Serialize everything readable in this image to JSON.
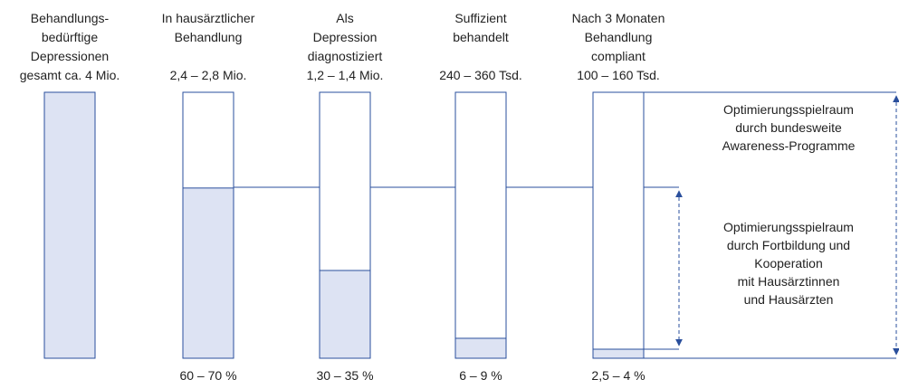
{
  "columns": [
    {
      "label_lines": [
        "Behandlungs-",
        "bedürftige",
        "Depressionen"
      ],
      "amount": "gesamt ca. 4 Mio.",
      "fill": 100
    },
    {
      "label_lines": [
        "In hausärztlicher",
        "Behandlung"
      ],
      "amount": "2,4 – 2,8 Mio.",
      "share": "60 – 70 %",
      "fill": 64
    },
    {
      "label_lines": [
        "Als",
        "Depression",
        "diagnostiziert"
      ],
      "amount": "1,2 – 1,4 Mio.",
      "share": "30 – 35 %",
      "fill": 33
    },
    {
      "label_lines": [
        "Suffizient",
        "behandelt"
      ],
      "amount": "240 – 360 Tsd.",
      "share": "6 – 9 %",
      "fill": 7.5
    },
    {
      "label_lines": [
        "Nach 3 Monaten",
        "Behandlung",
        "compliant"
      ],
      "amount": "100 – 160 Tsd.",
      "share": "2,5 – 4 %",
      "fill": 3.4
    }
  ],
  "annotations": [
    {
      "lines": [
        "Optimierungsspielraum",
        "durch bundesweite",
        "Awareness-Programme"
      ]
    },
    {
      "lines": [
        "Optimierungsspielraum",
        "durch Fortbildung und",
        "Kooperation",
        "mit Hausärztinnen",
        "und Hausärzten"
      ]
    }
  ]
}
